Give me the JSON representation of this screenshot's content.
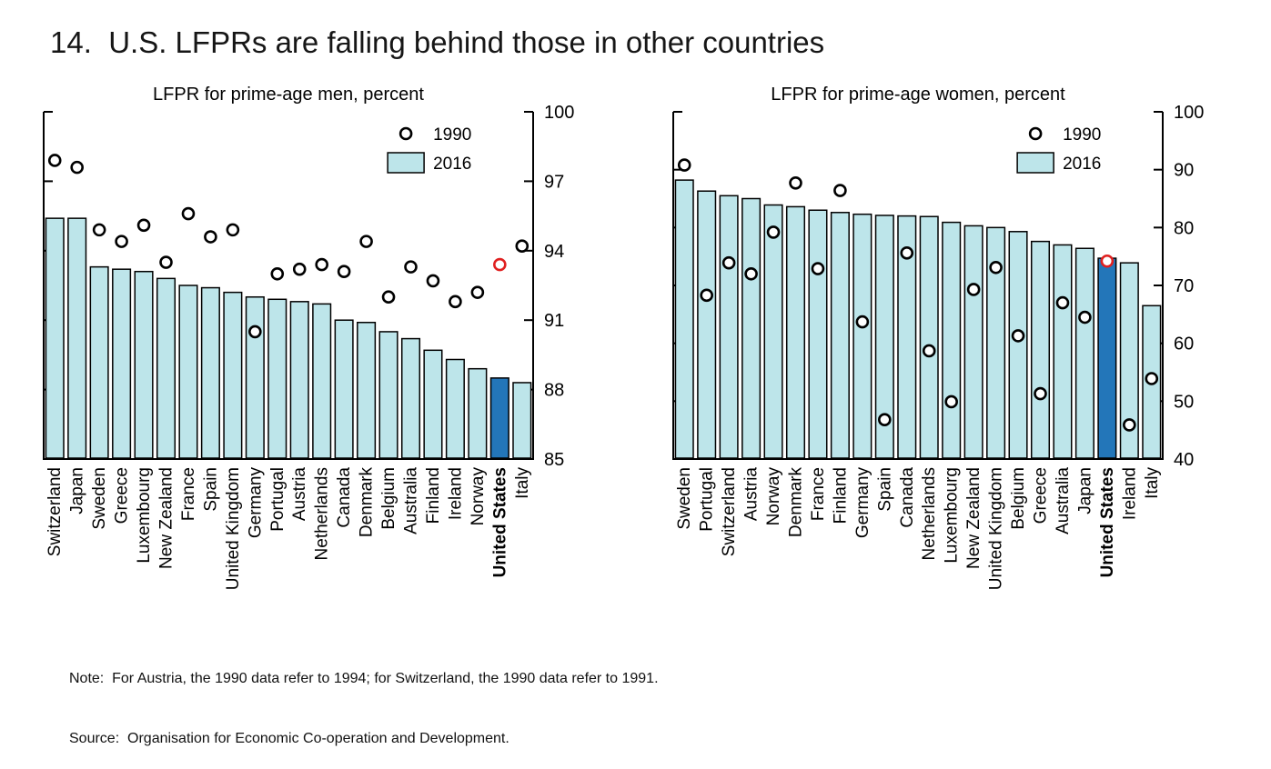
{
  "slide": {
    "title": "14.  U.S. LFPRs are falling behind those in other countries",
    "note_line1": "Note:  For Austria, the 1990 data refer to 1994; for Switzerland, the 1990 data refer to 1991.",
    "note_line2": "Source:  Organisation for Economic Co-operation and Development."
  },
  "colors": {
    "bar_fill": "#bde5ea",
    "bar_highlight": "#2376b9",
    "circle_stroke": "#000000",
    "circle_fill": "#ffffff",
    "circle_highlight": "#e02020",
    "axis": "#000000"
  },
  "chart_data": [
    {
      "type": "bar+scatter",
      "title": "LFPR for prime-age men, percent",
      "ylim": [
        85,
        100
      ],
      "yticks": [
        85,
        88,
        91,
        94,
        97,
        100
      ],
      "grid": false,
      "legend": {
        "circle_label": "1990",
        "bar_label": "2016",
        "position": "upper-right-inside"
      },
      "highlight_category": "United States",
      "categories": [
        "Switzerland",
        "Japan",
        "Sweden",
        "Greece",
        "Luxembourg",
        "New Zealand",
        "France",
        "Spain",
        "United Kingdom",
        "Germany",
        "Portugal",
        "Austria",
        "Netherlands",
        "Canada",
        "Denmark",
        "Belgium",
        "Australia",
        "Finland",
        "Ireland",
        "Norway",
        "United States",
        "Italy"
      ],
      "series": [
        {
          "name": "1990",
          "type": "scatter",
          "values": [
            97.9,
            97.6,
            94.9,
            94.4,
            95.1,
            93.5,
            95.6,
            94.6,
            94.9,
            90.5,
            93.0,
            93.2,
            93.4,
            93.1,
            94.4,
            92.0,
            93.3,
            92.7,
            91.8,
            92.2,
            93.4,
            94.2
          ]
        },
        {
          "name": "2016",
          "type": "bar",
          "values": [
            95.4,
            95.4,
            93.3,
            93.2,
            93.1,
            92.8,
            92.5,
            92.4,
            92.2,
            92.0,
            91.9,
            91.8,
            91.7,
            91.0,
            90.9,
            90.5,
            90.2,
            89.7,
            89.3,
            88.9,
            88.5,
            88.3
          ]
        }
      ]
    },
    {
      "type": "bar+scatter",
      "title": "LFPR for prime-age women, percent",
      "ylim": [
        40,
        100
      ],
      "yticks": [
        40,
        50,
        60,
        70,
        80,
        90,
        100
      ],
      "grid": false,
      "legend": {
        "circle_label": "1990",
        "bar_label": "2016",
        "position": "upper-right-inside"
      },
      "highlight_category": "United States",
      "categories": [
        "Sweden",
        "Portugal",
        "Switzerland",
        "Austria",
        "Norway",
        "Denmark",
        "France",
        "Finland",
        "Germany",
        "Spain",
        "Canada",
        "Netherlands",
        "Luxembourg",
        "New Zealand",
        "United Kingdom",
        "Belgium",
        "Greece",
        "Australia",
        "Japan",
        "United States",
        "Ireland",
        "Italy"
      ],
      "series": [
        {
          "name": "1990",
          "type": "scatter",
          "values": [
            90.8,
            68.3,
            73.9,
            72.0,
            79.2,
            87.7,
            72.9,
            86.4,
            63.7,
            46.8,
            75.6,
            58.7,
            49.9,
            69.3,
            73.1,
            61.3,
            51.3,
            67.0,
            64.5,
            74.2,
            45.9,
            53.9
          ]
        },
        {
          "name": "2016",
          "type": "bar",
          "values": [
            88.2,
            86.3,
            85.5,
            85.0,
            83.9,
            83.6,
            83.0,
            82.6,
            82.3,
            82.1,
            82.0,
            81.9,
            80.9,
            80.3,
            80.0,
            79.3,
            77.6,
            77.0,
            76.4,
            74.7,
            73.9,
            66.5
          ]
        }
      ]
    }
  ]
}
